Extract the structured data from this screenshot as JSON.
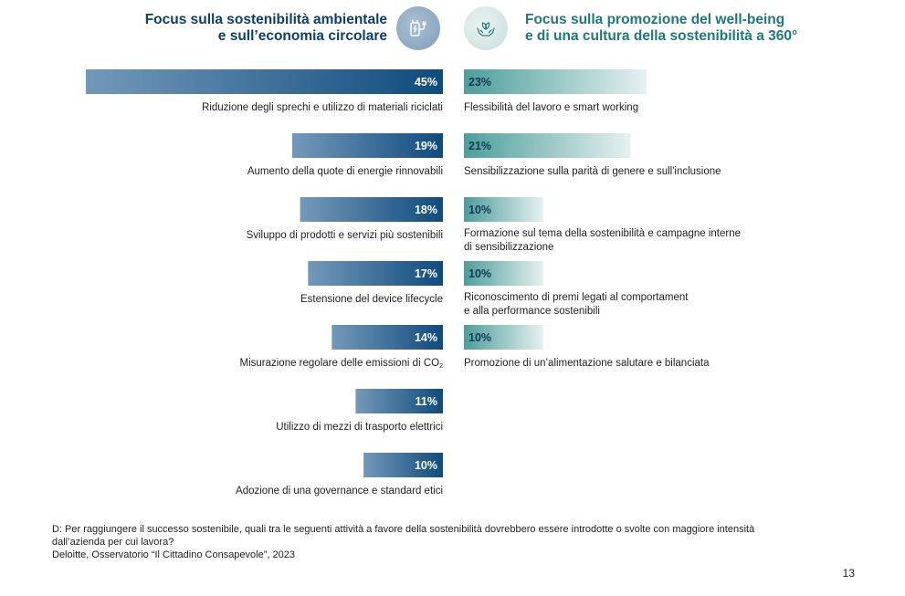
{
  "header_left": {
    "line1": "Focus sulla sostenibilità ambientale",
    "line2": "e sull’economia circolare",
    "icon": "ev-charging-plug-icon"
  },
  "header_right": {
    "line1": "Focus sulla promozione del well-being",
    "line2": "e di una cultura della sostenibilità a 360°",
    "icon": "hands-holding-leaf-icon"
  },
  "colors": {
    "left_bar_from": "#7399b9",
    "left_bar_to": "#0f4b7d",
    "right_bar_from": "#4d9e9c",
    "right_bar_to": "#e5f1ef",
    "left_title": "#0d3f6b",
    "right_title": "#1d7a7a"
  },
  "chart_data": [
    {
      "type": "bar",
      "orientation": "horizontal",
      "value_suffix": "%",
      "categories": [
        "Riduzione degli sprechi e utilizzo di materiali riciclati",
        "Aumento della quote di energie rinnovabili",
        "Sviluppo di prodotti e servizi più sostenibili",
        "Estensione del device lifecycle",
        "Misurazione regolare delle emissioni di CO2",
        "Utilizzo di mezzi di trasporto elettrici",
        "Adozione di una governance e standard etici"
      ],
      "values": [
        45,
        19,
        18,
        17,
        14,
        11,
        10
      ],
      "labels": [
        "45%",
        "19%",
        "18%",
        "17%",
        "14%",
        "11%",
        "10%"
      ]
    },
    {
      "type": "bar",
      "orientation": "horizontal",
      "value_suffix": "%",
      "categories": [
        "Flessibilità del lavoro e smart working",
        "Sensibilizzazione sulla parità di genere e sull'inclusione",
        "Formazione sul tema della sostenibilità e campagne interne di sensibilizzazione",
        "Riconoscimento di premi legati al comportament e alla performance sostenibili",
        "Promozione di un’alimentazione salutare e bilanciata"
      ],
      "values": [
        23,
        21,
        10,
        10,
        10
      ],
      "labels": [
        "23%",
        "21%",
        "10%",
        "10%",
        "10%"
      ]
    }
  ],
  "left_labels": {
    "l0": "Riduzione degli sprechi e utilizzo di materiali riciclati",
    "l1": "Aumento della quote di energie rinnovabili",
    "l2": "Sviluppo di prodotti e servizi più sostenibili",
    "l3": "Estensione del device lifecycle",
    "l4_main": "Misurazione regolare delle emissioni di CO",
    "l4_sub": "2",
    "l5": "Utilizzo di mezzi di trasporto elettrici",
    "l6": "Adozione di una governance e standard etici"
  },
  "right_labels": {
    "r0": "Flessibilità del lavoro e smart working",
    "r1": "Sensibilizzazione sulla parità di genere e sull'inclusione",
    "r2_line1": "Formazione sul tema della sostenibilità e campagne interne",
    "r2_line2": "di sensibilizzazione",
    "r3_line1": "Riconoscimento di premi legati al comportament",
    "r3_line2": "e alla performance sostenibili",
    "r4": "Promozione di un’alimentazione salutare e bilanciata"
  },
  "footnote": {
    "question_line1": "D: Per raggiungere il successo sostenibile, quali tra le seguenti attività a favore della sostenibilità dovrebbero essere introdotte o svolte con maggiore intensità",
    "question_line2": "dall’azienda per cui lavora?",
    "source": "Deloitte, Osservatorio “Il Cittadino Consapevole”, 2023"
  },
  "page_number": "13"
}
